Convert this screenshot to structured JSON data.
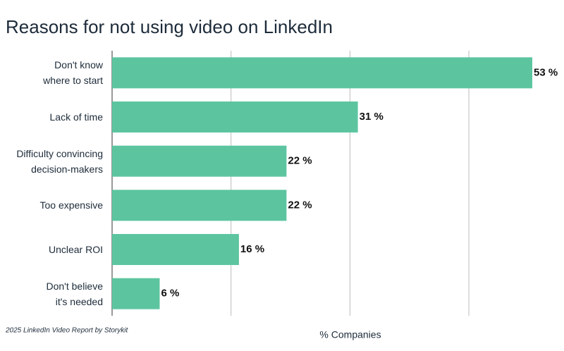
{
  "chart_data": {
    "type": "bar",
    "orientation": "horizontal",
    "title": "Reasons for not using video on LinkedIn",
    "categories": [
      "Don't know\nwhere to start",
      "Lack of time",
      "Difficulty convincing\ndecision-makers",
      "Too expensive",
      "Unclear ROI",
      "Don't believe\nit's needed"
    ],
    "values": [
      53,
      31,
      22,
      22,
      16,
      6
    ],
    "value_labels": [
      "53 %",
      "31 %",
      "22 %",
      "22 %",
      "16 %",
      "6 %"
    ],
    "color": "#5cc5a0",
    "xlabel": "% Companies",
    "source": "2025 LinkedIn Video Report by Storykit",
    "xlim": [
      0,
      57
    ],
    "xticks": [
      0,
      15,
      30,
      45
    ],
    "grid": true
  }
}
